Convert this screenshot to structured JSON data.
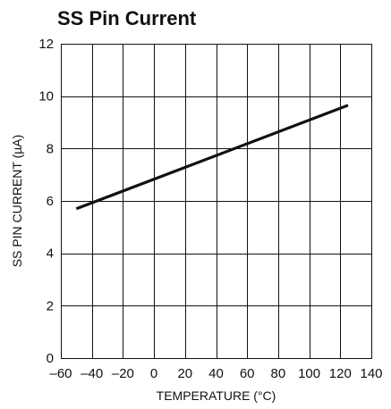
{
  "chart_data": {
    "type": "line",
    "title": "SS Pin Current",
    "xlabel": "TEMPERATURE (°C)",
    "ylabel": "SS PIN CURRENT (µA)",
    "xlim": [
      -60,
      140
    ],
    "ylim": [
      0,
      12
    ],
    "x_ticks": [
      -60,
      -40,
      -20,
      0,
      20,
      40,
      60,
      80,
      100,
      120,
      140
    ],
    "y_ticks": [
      0,
      2,
      4,
      6,
      8,
      10,
      12
    ],
    "x_tick_labels": [
      "–60",
      "–40",
      "–20",
      "0",
      "20",
      "40",
      "60",
      "80",
      "100",
      "120",
      "140"
    ],
    "y_tick_labels": [
      "0",
      "2",
      "4",
      "6",
      "8",
      "10",
      "12"
    ],
    "grid": true,
    "series": [
      {
        "x": [
          -50,
          125
        ],
        "y": [
          5.7,
          9.65
        ],
        "color": "#111111"
      }
    ]
  }
}
